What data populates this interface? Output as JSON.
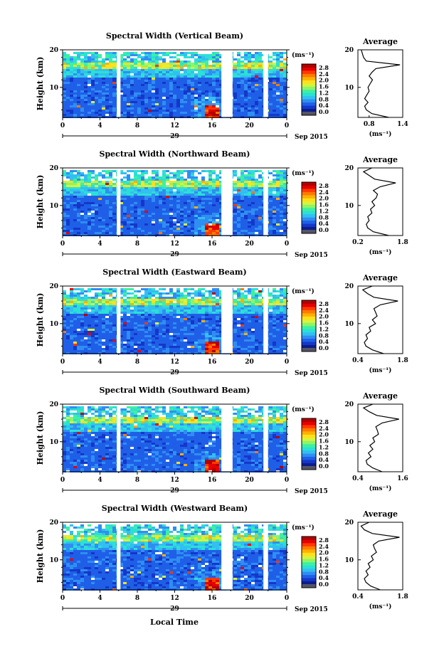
{
  "figure": {
    "bottom_label": "Local Time"
  },
  "colorbar": {
    "unit_label": "(ms⁻¹)",
    "ticks": [
      "2.8",
      "2.4",
      "2.0",
      "1.6",
      "1.2",
      "0.8",
      "0.4",
      "0.0"
    ],
    "colors": [
      "#0b1d8a",
      "#1537c9",
      "#1f5fe8",
      "#2f8ef2",
      "#33bff0",
      "#2be0d6",
      "#3ef0a0",
      "#8cf56a",
      "#d9f23c",
      "#ffe01a",
      "#ffb000",
      "#ff7a00",
      "#ff3a00",
      "#e60000",
      "#b30000"
    ],
    "gray_bottom": "#555566"
  },
  "chart_data": [
    {
      "type": "heatmap",
      "title": "Spectral Width (Vertical Beam)",
      "ylabel": "Height (km)",
      "ylim": [
        2,
        20
      ],
      "yticks": [
        "20",
        "10"
      ],
      "xticks": [
        "0",
        "4",
        "8",
        "12",
        "16",
        "20",
        "0"
      ],
      "xlim": [
        0,
        24
      ],
      "date_day": "29",
      "date_label": "Sep 2015",
      "gaps_hours": [
        [
          5.8,
          6.2
        ],
        [
          17.0,
          18.2
        ],
        [
          21.5,
          22.0
        ]
      ],
      "average": {
        "title": "Average",
        "xlabel": "(ms⁻¹)",
        "xticks": [
          "0.8",
          "1.4"
        ],
        "xlim": [
          0.6,
          1.4
        ],
        "yticks": [
          "20",
          "10"
        ],
        "height_km": [
          2,
          3,
          4,
          5,
          6,
          7,
          8,
          9,
          10,
          11,
          12,
          13,
          14,
          15,
          16,
          17,
          18,
          19,
          20
        ],
        "width_ms": [
          1.15,
          0.85,
          0.75,
          0.72,
          0.78,
          0.72,
          0.76,
          0.8,
          0.78,
          0.82,
          0.86,
          0.8,
          0.85,
          0.92,
          1.35,
          0.75,
          0.7,
          0.68,
          0.66
        ]
      }
    },
    {
      "type": "heatmap",
      "title": "Spectral Width (Northward Beam)",
      "ylabel": "Height (km)",
      "ylim": [
        2,
        20
      ],
      "yticks": [
        "20",
        "10"
      ],
      "xticks": [
        "0",
        "4",
        "8",
        "12",
        "16",
        "20",
        "0"
      ],
      "xlim": [
        0,
        24
      ],
      "date_day": "29",
      "date_label": "Sep 2015",
      "gaps_hours": [
        [
          5.8,
          6.2
        ],
        [
          17.0,
          18.2
        ],
        [
          21.5,
          22.0
        ]
      ],
      "average": {
        "title": "Average",
        "xlabel": "(ms⁻¹)",
        "xticks": [
          "0.2",
          "1.8"
        ],
        "xlim": [
          0.2,
          1.8
        ],
        "yticks": [
          "20",
          "10"
        ],
        "height_km": [
          2,
          3,
          4,
          5,
          6,
          7,
          8,
          9,
          10,
          11,
          12,
          13,
          14,
          15,
          16,
          17,
          18,
          19,
          20
        ],
        "width_ms": [
          1.3,
          0.75,
          0.55,
          0.5,
          0.6,
          0.55,
          0.7,
          0.65,
          0.8,
          0.7,
          0.85,
          0.9,
          0.75,
          1.0,
          1.55,
          0.8,
          0.6,
          0.4,
          0.7
        ]
      }
    },
    {
      "type": "heatmap",
      "title": "Spectral Width (Eastward Beam)",
      "ylabel": "Height (km)",
      "ylim": [
        2,
        20
      ],
      "yticks": [
        "20",
        "10"
      ],
      "xticks": [
        "0",
        "4",
        "8",
        "12",
        "16",
        "20",
        "0"
      ],
      "xlim": [
        0,
        24
      ],
      "date_day": "29",
      "date_label": "Sep 2015",
      "gaps_hours": [
        [
          5.8,
          6.2
        ],
        [
          17.0,
          18.2
        ],
        [
          21.5,
          22.0
        ]
      ],
      "average": {
        "title": "Average",
        "xlabel": "(ms⁻¹)",
        "xticks": [
          "0.4",
          "1.8"
        ],
        "xlim": [
          0.4,
          1.8
        ],
        "yticks": [
          "20",
          "10"
        ],
        "height_km": [
          2,
          3,
          4,
          5,
          6,
          7,
          8,
          9,
          10,
          11,
          12,
          13,
          14,
          15,
          16,
          17,
          18,
          19,
          20
        ],
        "width_ms": [
          1.2,
          0.85,
          0.65,
          0.6,
          0.7,
          0.65,
          0.8,
          0.75,
          0.95,
          0.85,
          1.0,
          0.95,
          0.9,
          1.1,
          1.65,
          0.9,
          0.7,
          0.55,
          0.85
        ]
      }
    },
    {
      "type": "heatmap",
      "title": "Spectral Width (Southward Beam)",
      "ylabel": "Height (km)",
      "ylim": [
        2,
        20
      ],
      "yticks": [
        "20",
        "10"
      ],
      "xticks": [
        "0",
        "4",
        "8",
        "12",
        "16",
        "20",
        "0"
      ],
      "xlim": [
        0,
        24
      ],
      "date_day": "29",
      "date_label": "Sep 2015",
      "gaps_hours": [
        [
          5.8,
          6.2
        ],
        [
          17.0,
          18.2
        ],
        [
          21.5,
          22.0
        ]
      ],
      "average": {
        "title": "Average",
        "xlabel": "(ms⁻¹)",
        "xticks": [
          "0.4",
          "1.6"
        ],
        "xlim": [
          0.4,
          1.6
        ],
        "yticks": [
          "20",
          "10"
        ],
        "height_km": [
          2,
          3,
          4,
          5,
          6,
          7,
          8,
          9,
          10,
          11,
          12,
          13,
          14,
          15,
          16,
          17,
          18,
          19,
          20
        ],
        "width_ms": [
          1.05,
          0.8,
          0.65,
          0.62,
          0.75,
          0.68,
          0.8,
          0.72,
          0.85,
          0.8,
          0.95,
          0.92,
          0.88,
          1.05,
          1.5,
          0.9,
          0.7,
          0.55,
          0.8
        ]
      }
    },
    {
      "type": "heatmap",
      "title": "Spectral Width (Westward Beam)",
      "ylabel": "Height (km)",
      "ylim": [
        2,
        20
      ],
      "yticks": [
        "20",
        "10"
      ],
      "xticks": [
        "0",
        "4",
        "8",
        "12",
        "16",
        "20",
        "0"
      ],
      "xlim": [
        0,
        24
      ],
      "date_day": "29",
      "date_label": "Sep 2015",
      "gaps_hours": [
        [
          5.8,
          6.2
        ],
        [
          17.0,
          18.2
        ],
        [
          21.5,
          22.0
        ]
      ],
      "average": {
        "title": "Average",
        "xlabel": "(ms⁻¹)",
        "xticks": [
          "0.4",
          "1.8"
        ],
        "xlim": [
          0.4,
          1.8
        ],
        "yticks": [
          "20",
          "10"
        ],
        "height_km": [
          2,
          3,
          4,
          5,
          6,
          7,
          8,
          9,
          10,
          11,
          12,
          13,
          14,
          15,
          16,
          17,
          18,
          19,
          20
        ],
        "width_ms": [
          1.1,
          0.8,
          0.65,
          0.6,
          0.72,
          0.65,
          0.78,
          0.72,
          0.88,
          0.82,
          0.98,
          0.92,
          0.88,
          1.05,
          1.7,
          0.85,
          0.6,
          0.5,
          0.75
        ]
      }
    }
  ]
}
